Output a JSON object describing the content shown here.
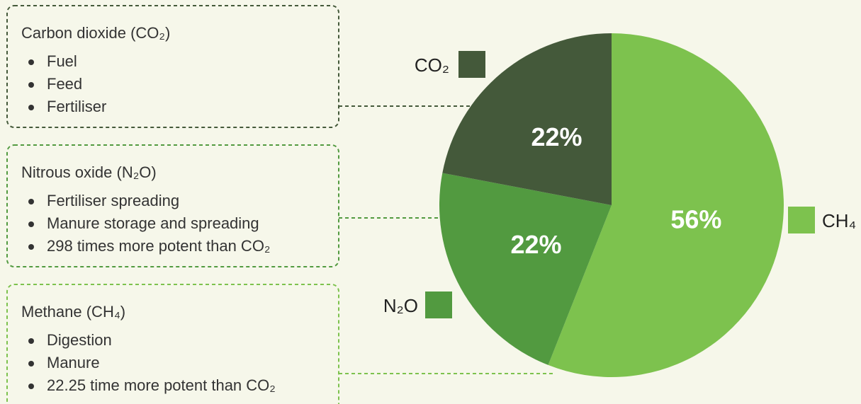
{
  "chart_data": {
    "type": "pie",
    "categories": [
      "CH₄",
      "N₂O",
      "CO₂"
    ],
    "values": [
      56,
      22,
      22
    ],
    "value_labels": [
      "56%",
      "22%",
      "22%"
    ],
    "colors": [
      "#7dc24e",
      "#529a40",
      "#44593a"
    ],
    "annotations": [
      {
        "title": "Carbon dioxide (CO₂)",
        "items": [
          "Fuel",
          "Feed",
          "Fertiliser"
        ]
      },
      {
        "title": "Nitrous oxide (N₂O)",
        "items": [
          "Fertiliser spreading",
          "Manure storage and spreading",
          "298 times more potent than CO₂"
        ]
      },
      {
        "title": "Methane (CH₄)",
        "items": [
          "Digestion",
          "Manure",
          "22.25 time more potent than CO₂"
        ]
      }
    ]
  }
}
